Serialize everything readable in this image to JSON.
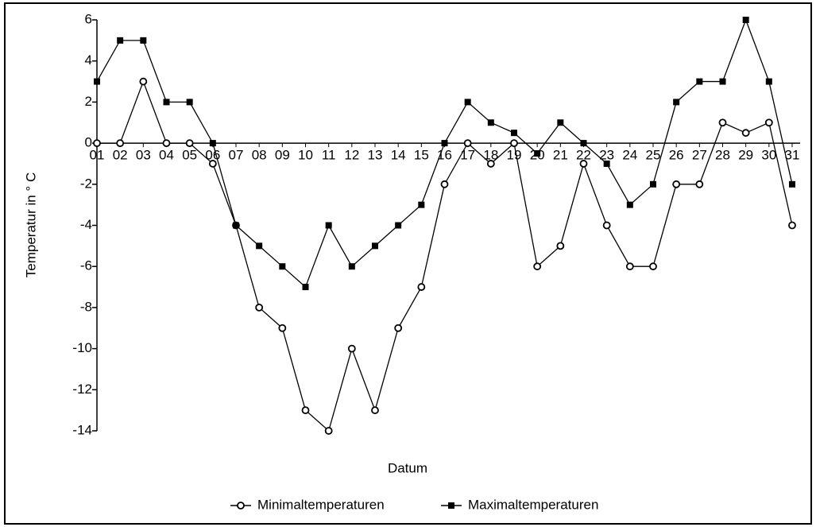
{
  "chart_data": {
    "type": "line",
    "x_label": "Datum",
    "y_label": "Temperatur in ° C",
    "categories": [
      "01",
      "02",
      "03",
      "04",
      "05",
      "06",
      "07",
      "08",
      "09",
      "10",
      "11",
      "12",
      "13",
      "14",
      "15",
      "16",
      "17",
      "18",
      "19",
      "20",
      "21",
      "22",
      "23",
      "24",
      "25",
      "26",
      "27",
      "28",
      "29",
      "30",
      "31"
    ],
    "series": [
      {
        "name": "Minimaltemperaturen",
        "color": "#000000",
        "marker": "circle",
        "values": [
          0,
          0,
          3,
          0,
          0,
          -1,
          -4,
          -8,
          -9,
          -13,
          -14,
          -10,
          -13,
          -9,
          -7,
          -2,
          0,
          -1,
          0,
          -6,
          -5,
          -1,
          -4,
          -6,
          -6,
          -2,
          -2,
          1,
          0.5,
          1,
          -4
        ]
      },
      {
        "name": "Maximaltemperaturen",
        "color": "#000000",
        "marker": "square",
        "values": [
          3,
          5,
          5,
          2,
          2,
          0,
          -4,
          -5,
          -6,
          -7,
          -4,
          -6,
          -5,
          -4,
          -3,
          0,
          2,
          1,
          0.5,
          -0.5,
          1,
          0,
          -1,
          -3,
          -2,
          2,
          3,
          3,
          6,
          3,
          -2
        ]
      }
    ],
    "ylim": [
      -14,
      6
    ],
    "yticks": [
      -14,
      -12,
      -10,
      -8,
      -6,
      -4,
      -2,
      0,
      2,
      4,
      6
    ],
    "grid": false,
    "legend": "bottom"
  }
}
